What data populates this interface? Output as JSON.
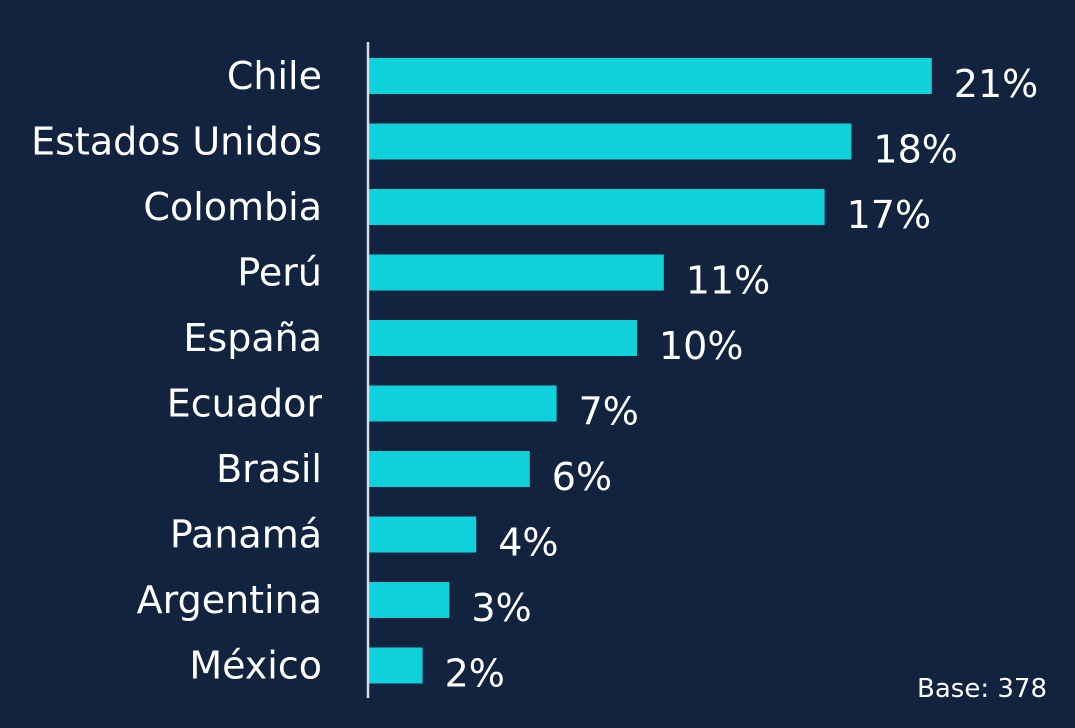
{
  "chart_data": {
    "type": "bar",
    "orientation": "horizontal",
    "categories": [
      "Chile",
      "Estados Unidos",
      "Colombia",
      "Perú",
      "España",
      "Ecuador",
      "Brasil",
      "Panamá",
      "Argentina",
      "México"
    ],
    "values": [
      21,
      18,
      17,
      11,
      10,
      7,
      6,
      4,
      3,
      2
    ],
    "value_labels": [
      "21%",
      "18%",
      "17%",
      "11%",
      "10%",
      "7%",
      "6%",
      "4%",
      "3%",
      "2%"
    ],
    "xlim": [
      0,
      25
    ],
    "grid": false,
    "legend": "none",
    "title": "",
    "xlabel": "",
    "ylabel": ""
  },
  "footnote": "Base: 378",
  "colors": {
    "background": "#12233f",
    "bar": "#0ed1dc",
    "axis": "#d9dde3",
    "text": "#ffffff"
  }
}
